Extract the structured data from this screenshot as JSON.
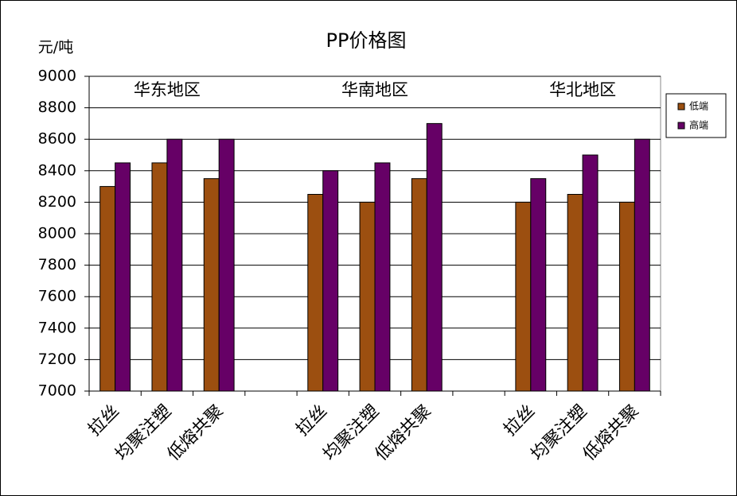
{
  "chart_data": {
    "type": "bar",
    "title": "PP价格图",
    "y_label": "元/吨",
    "annotations": [
      "华东地区",
      "华南地区",
      "华北地区"
    ],
    "categories": [
      "拉丝",
      "均聚注塑",
      "低熔共聚",
      null,
      "拉丝",
      "均聚注塑",
      "低熔共聚",
      null,
      "拉丝",
      "均聚注塑",
      "低熔共聚"
    ],
    "series": [
      {
        "name": "低端",
        "color": "#9c4f10",
        "values": [
          8300,
          8450,
          8350,
          null,
          8250,
          8200,
          8350,
          null,
          8200,
          8250,
          8200
        ]
      },
      {
        "name": "高端",
        "color": "#660066",
        "values": [
          8450,
          8600,
          8600,
          null,
          8400,
          8450,
          8700,
          null,
          8350,
          8500,
          8600
        ]
      }
    ],
    "ylim": [
      7000,
      9000
    ],
    "yticks": [
      7000,
      7200,
      7400,
      7600,
      7800,
      8000,
      8200,
      8400,
      8600,
      8800,
      9000
    ],
    "grid": true,
    "legend": "right"
  }
}
